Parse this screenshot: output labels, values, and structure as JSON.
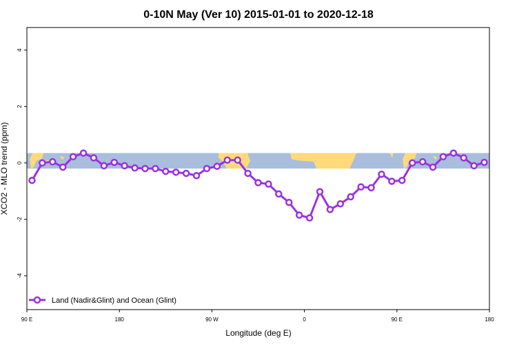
{
  "chart_data": {
    "type": "line",
    "title": "0-10N May (Ver 10)   2015-01-01 to 2020-12-18",
    "xlabel": "Longitude (deg E)",
    "ylabel": "XCO2 - MLO trend (ppm)",
    "xlim": [
      90,
      270
    ],
    "ylim": [
      -5.2,
      4.8
    ],
    "x_ticks": [
      {
        "value": 90,
        "label": "90 E"
      },
      {
        "value": 126,
        "label": "180"
      },
      {
        "value": 162,
        "label": "90 W"
      },
      {
        "value": 198,
        "label": "0"
      },
      {
        "value": 234,
        "label": "90 E"
      },
      {
        "value": 270,
        "label": "180"
      }
    ],
    "y_ticks": [
      {
        "value": -4,
        "label": "-4"
      },
      {
        "value": -2,
        "label": "-2"
      },
      {
        "value": 0,
        "label": "0"
      },
      {
        "value": 2,
        "label": "2"
      },
      {
        "value": 4,
        "label": "4"
      }
    ],
    "grid": false,
    "legend_position": "bottom-left",
    "background_band": {
      "ymin": -0.2,
      "ymax": 0.35,
      "ocean_color": "#a8bedc",
      "land_color": "#ffd97a"
    },
    "series": [
      {
        "name": "Land (Nadir&Glint) and Ocean (Glint)",
        "color": "#9b30e0",
        "x": [
          92,
          96,
          100,
          104,
          108,
          112,
          116,
          120,
          124,
          128,
          132,
          136,
          140,
          144,
          148,
          152,
          156,
          160,
          164,
          168,
          172,
          176,
          180,
          184,
          188,
          192,
          196,
          200,
          204,
          208,
          212,
          216,
          220,
          224,
          228,
          232,
          236,
          240,
          244,
          248,
          252,
          256,
          260,
          264,
          268
        ],
        "values": [
          -0.62,
          0.0,
          0.04,
          -0.15,
          0.22,
          0.35,
          0.18,
          -0.1,
          0.02,
          -0.1,
          -0.18,
          -0.2,
          -0.2,
          -0.3,
          -0.33,
          -0.37,
          -0.45,
          -0.2,
          -0.12,
          0.1,
          0.1,
          -0.37,
          -0.7,
          -0.75,
          -1.1,
          -1.4,
          -1.85,
          -1.95,
          -1.02,
          -1.65,
          -1.45,
          -1.2,
          -0.85,
          -0.88,
          -0.4,
          -0.65,
          -0.62,
          0.0,
          0.04,
          -0.15,
          0.22,
          0.35,
          0.18,
          -0.1,
          0.02
        ]
      }
    ]
  }
}
